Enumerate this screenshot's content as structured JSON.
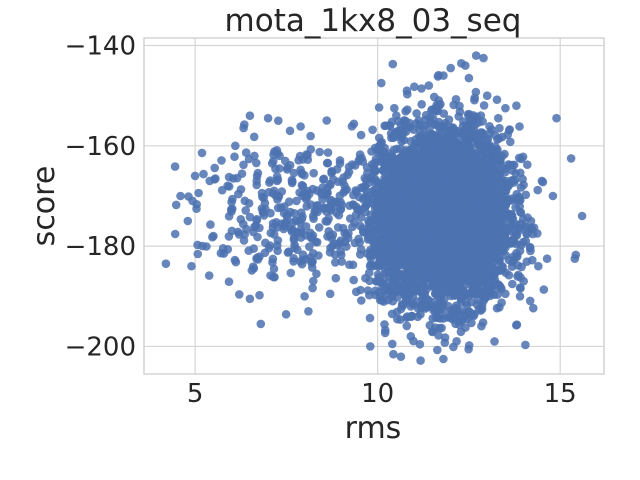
{
  "chart_data": {
    "type": "scatter",
    "title": "mota_1kx8_03_seq",
    "xlabel": "rms",
    "ylabel": "score",
    "xlim": [
      3.6,
      16.2
    ],
    "ylim": [
      -205.5,
      -138.5
    ],
    "x_ticks": [
      5,
      10,
      15
    ],
    "x_tick_labels": [
      "5",
      "10",
      "15"
    ],
    "y_ticks": [
      -200,
      -180,
      -160,
      -140
    ],
    "y_tick_labels": [
      "−200",
      "−180",
      "−160",
      "−140"
    ],
    "grid": true,
    "legend": "none",
    "colors": {
      "points": "#4c72b0"
    },
    "series": [
      {
        "clusters": [
          {
            "x_mean": 12.0,
            "x_sd": 0.8,
            "y_mean": -174,
            "y_sd": 8.5,
            "count": 4200
          },
          {
            "x_mean": 10.6,
            "x_sd": 0.5,
            "y_mean": -175,
            "y_sd": 8.0,
            "count": 800
          },
          {
            "x_mean": 8.0,
            "x_sd": 1.5,
            "y_mean": -173,
            "y_sd": 7.0,
            "count": 400
          }
        ],
        "points": [
          {
            "x": 4.2,
            "y": -183.5
          },
          {
            "x": 4.6,
            "y": -170
          },
          {
            "x": 4.8,
            "y": -175
          },
          {
            "x": 4.9,
            "y": -184
          },
          {
            "x": 5.0,
            "y": -166
          },
          {
            "x": 5.2,
            "y": -180
          },
          {
            "x": 5.4,
            "y": -167
          },
          {
            "x": 5.5,
            "y": -178
          },
          {
            "x": 6.1,
            "y": -160
          },
          {
            "x": 6.5,
            "y": -154
          },
          {
            "x": 6.5,
            "y": -190.5
          },
          {
            "x": 6.8,
            "y": -195.5
          },
          {
            "x": 7.0,
            "y": -154.5
          },
          {
            "x": 7.6,
            "y": -157
          },
          {
            "x": 8.0,
            "y": -190
          },
          {
            "x": 8.7,
            "y": -189.5
          },
          {
            "x": 9.8,
            "y": -200
          },
          {
            "x": 10.4,
            "y": -199.5
          },
          {
            "x": 10.1,
            "y": -147.5
          },
          {
            "x": 10.8,
            "y": -149
          },
          {
            "x": 11.4,
            "y": -148
          },
          {
            "x": 11.8,
            "y": -146
          },
          {
            "x": 12.0,
            "y": -144.5
          },
          {
            "x": 12.4,
            "y": -144
          },
          {
            "x": 12.5,
            "y": -146.5
          },
          {
            "x": 12.7,
            "y": -142
          },
          {
            "x": 12.9,
            "y": -142.5
          },
          {
            "x": 13.0,
            "y": -150
          },
          {
            "x": 13.8,
            "y": -152
          },
          {
            "x": 13.5,
            "y": -152.5
          },
          {
            "x": 11.8,
            "y": -202.5
          },
          {
            "x": 13.2,
            "y": -199
          },
          {
            "x": 14.0,
            "y": -187
          },
          {
            "x": 14.4,
            "y": -184
          },
          {
            "x": 14.5,
            "y": -167
          },
          {
            "x": 14.8,
            "y": -170
          },
          {
            "x": 14.9,
            "y": -154.5
          },
          {
            "x": 15.3,
            "y": -162.5
          },
          {
            "x": 15.4,
            "y": -182.5
          },
          {
            "x": 15.6,
            "y": -174
          },
          {
            "x": 14.2,
            "y": -175
          },
          {
            "x": 13.9,
            "y": -190
          }
        ]
      }
    ]
  }
}
